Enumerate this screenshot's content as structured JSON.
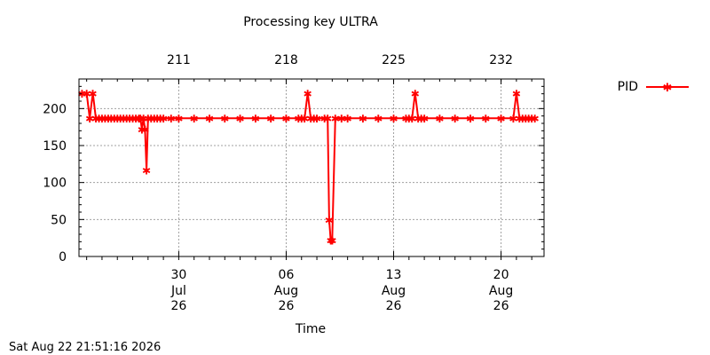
{
  "chart_data": {
    "type": "line",
    "title": "Processing key ULTRA",
    "xlabel": "Time",
    "ylabel": "",
    "timestamp": "Sat Aug 22 21:51:16 2026",
    "ylim": [
      0,
      240
    ],
    "y_ticks": [
      0,
      50,
      100,
      150,
      200
    ],
    "xlim": [
      -0.5,
      29.8
    ],
    "bottom_ticks": [
      {
        "x": 6,
        "day": "30",
        "month": "Jul",
        "year": "26"
      },
      {
        "x": 13,
        "day": "06",
        "month": "Aug",
        "year": "26"
      },
      {
        "x": 20,
        "day": "13",
        "month": "Aug",
        "year": "26"
      },
      {
        "x": 27,
        "day": "20",
        "month": "Aug",
        "year": "26"
      }
    ],
    "top_ticks": [
      {
        "x": 6,
        "label": "211"
      },
      {
        "x": 13,
        "label": "218"
      },
      {
        "x": 20,
        "label": "225"
      },
      {
        "x": 27,
        "label": "232"
      }
    ],
    "grid": true,
    "legend": "top-right",
    "colors": {
      "series": "#ff0000",
      "grid": "#a0a0a0",
      "axis": "#000000"
    },
    "series": [
      {
        "name": "PID",
        "x": [
          -0.3,
          0.0,
          0.2,
          0.4,
          0.6,
          0.8,
          1.0,
          1.2,
          1.4,
          1.6,
          1.8,
          2.0,
          2.2,
          2.4,
          2.6,
          2.8,
          3.0,
          3.2,
          3.4,
          3.5,
          3.6,
          3.7,
          3.8,
          3.9,
          4.0,
          4.2,
          4.4,
          4.6,
          4.8,
          5.0,
          5.5,
          6.0,
          7.0,
          8.0,
          9.0,
          10.0,
          11.0,
          12.0,
          13.0,
          13.8,
          14.0,
          14.2,
          14.4,
          14.6,
          14.8,
          15.0,
          15.5,
          15.7,
          15.8,
          15.9,
          16.0,
          16.2,
          16.6,
          17.0,
          18.0,
          19.0,
          20.0,
          20.8,
          21.0,
          21.2,
          21.4,
          21.6,
          21.8,
          22.0,
          23.0,
          24.0,
          25.0,
          26.0,
          27.0,
          27.8,
          28.0,
          28.2,
          28.4,
          28.6,
          28.8,
          29.0,
          29.2
        ],
        "y": [
          221,
          221,
          187,
          221,
          187,
          187,
          187,
          187,
          187,
          187,
          187,
          187,
          187,
          187,
          187,
          187,
          187,
          187,
          187,
          187,
          172,
          187,
          172,
          117,
          187,
          187,
          187,
          187,
          187,
          187,
          187,
          187,
          187,
          187,
          187,
          187,
          187,
          187,
          187,
          187,
          187,
          187,
          221,
          187,
          187,
          187,
          187,
          187,
          50,
          22,
          22,
          187,
          187,
          187,
          187,
          187,
          187,
          187,
          187,
          187,
          221,
          187,
          187,
          187,
          187,
          187,
          187,
          187,
          187,
          187,
          221,
          187,
          187,
          187,
          187,
          187,
          187
        ]
      }
    ]
  }
}
